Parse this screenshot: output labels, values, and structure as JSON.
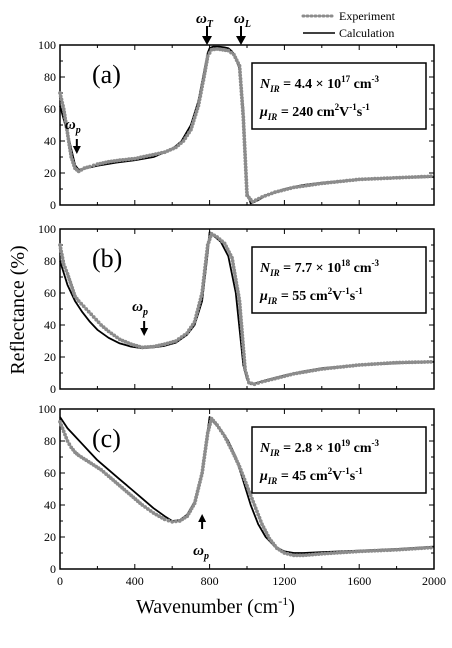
{
  "figure": {
    "ylabel": "Reflectance  (%)",
    "xlabel": "Wavenumber   (cm",
    "xlabel_sup": "-1",
    "xlabel_close": ")",
    "legend": {
      "experiment": "Experiment",
      "calculation": "Calculation"
    },
    "top_markers": {
      "omega_T": "ω",
      "omega_T_sub": "T",
      "omega_L": "ω",
      "omega_L_sub": "L"
    },
    "colors": {
      "experiment": "#8c8c8c",
      "calculation": "#000000"
    }
  },
  "chart_data": [
    {
      "type": "line",
      "panel": "(a)",
      "x_range": [
        0,
        2000
      ],
      "ylim": [
        0,
        100
      ],
      "xticks": [
        0,
        400,
        800,
        1200,
        1600,
        2000
      ],
      "yticks": [
        0,
        20,
        40,
        60,
        80,
        100
      ],
      "n_ir": {
        "base": "4.4",
        "mult": "×",
        "ten": "10",
        "exp": "17",
        "unit": "cm",
        "unit_exp": "-3",
        "label": "N",
        "sub": "IR"
      },
      "mu_ir": {
        "value": "240",
        "unit": "cm",
        "unit_exp1": "2",
        "V": "V",
        "unit_exp2": "-1",
        "s": "s",
        "unit_exp3": "-1",
        "label": "μ",
        "sub": "IR"
      },
      "omega_p": {
        "label": "ω",
        "sub": "p",
        "x": 90
      },
      "series": [
        {
          "name": "Calculation",
          "x": [
            0,
            40,
            80,
            100,
            140,
            200,
            300,
            400,
            500,
            600,
            650,
            700,
            740,
            770,
            790,
            800,
            820,
            850,
            880,
            900,
            920,
            940,
            960,
            980,
            1000,
            1020,
            1060,
            1100,
            1200,
            1300,
            1400,
            1600,
            1800,
            2000
          ],
          "y": [
            62,
            45,
            25,
            22,
            23,
            24.5,
            26.5,
            28,
            30,
            35,
            40,
            50,
            65,
            83,
            95,
            98,
            99,
            99,
            98.5,
            98,
            96,
            92,
            85,
            60,
            8,
            1,
            3,
            6,
            10,
            12.5,
            14,
            16,
            17,
            17.5
          ]
        },
        {
          "name": "Experiment",
          "x": [
            0,
            20,
            40,
            60,
            80,
            100,
            130,
            160,
            200,
            260,
            320,
            400,
            480,
            560,
            620,
            660,
            700,
            740,
            770,
            790,
            810,
            840,
            870,
            900,
            930,
            960,
            980,
            1000,
            1030,
            1080,
            1150,
            1250,
            1400,
            1600,
            1800,
            2000
          ],
          "y": [
            70,
            60,
            45,
            30,
            23,
            21,
            23,
            24,
            25.5,
            27,
            28,
            29,
            31,
            33,
            36,
            40,
            47,
            62,
            80,
            93,
            97,
            97.5,
            97,
            96.5,
            94,
            87,
            55,
            6,
            2,
            5,
            8,
            11,
            13.5,
            16,
            17,
            18
          ]
        }
      ]
    },
    {
      "type": "line",
      "panel": "(b)",
      "x_range": [
        0,
        2000
      ],
      "ylim": [
        0,
        100
      ],
      "xticks": [
        0,
        400,
        800,
        1200,
        1600,
        2000
      ],
      "yticks": [
        0,
        20,
        40,
        60,
        80,
        100
      ],
      "n_ir": {
        "base": "7.7",
        "mult": "×",
        "ten": "10",
        "exp": "18",
        "unit": "cm",
        "unit_exp": "-3",
        "label": "N",
        "sub": "IR"
      },
      "mu_ir": {
        "value": "55",
        "unit": "cm",
        "unit_exp1": "2",
        "V": "V",
        "unit_exp2": "-1",
        "s": "s",
        "unit_exp3": "-1",
        "label": "μ",
        "sub": "IR"
      },
      "omega_p": {
        "label": "ω",
        "sub": "p",
        "x": 450
      },
      "series": [
        {
          "name": "Calculation",
          "x": [
            0,
            40,
            80,
            120,
            160,
            200,
            260,
            320,
            380,
            440,
            500,
            560,
            620,
            680,
            720,
            760,
            790,
            800,
            820,
            860,
            900,
            940,
            980,
            1000,
            1020,
            1060,
            1100,
            1200,
            1300,
            1400,
            1600,
            1800,
            2000
          ],
          "y": [
            80,
            65,
            55,
            48,
            42,
            37,
            32,
            28.5,
            26.5,
            25.5,
            26,
            27,
            29,
            34,
            40,
            55,
            85,
            98,
            96,
            92,
            83,
            60,
            15,
            6,
            3,
            4,
            5.5,
            8.5,
            11,
            13,
            15,
            16,
            17
          ]
        },
        {
          "name": "Experiment",
          "x": [
            0,
            20,
            40,
            60,
            80,
            100,
            140,
            180,
            220,
            260,
            320,
            380,
            440,
            500,
            560,
            620,
            680,
            720,
            760,
            790,
            810,
            840,
            880,
            920,
            960,
            990,
            1010,
            1040,
            1080,
            1150,
            1250,
            1400,
            1600,
            1800,
            2000
          ],
          "y": [
            90,
            78,
            72,
            65,
            58,
            55,
            50,
            45,
            40,
            36,
            31,
            28,
            26,
            26.5,
            28,
            30,
            35,
            42,
            60,
            90,
            97,
            95,
            91,
            82,
            55,
            12,
            4,
            3,
            4.5,
            6.5,
            9.5,
            12.5,
            15,
            16.5,
            17
          ]
        }
      ]
    },
    {
      "type": "line",
      "panel": "(c)",
      "x_range": [
        0,
        2000
      ],
      "ylim": [
        0,
        100
      ],
      "xticks": [
        0,
        400,
        800,
        1200,
        1600,
        2000
      ],
      "yticks": [
        0,
        20,
        40,
        60,
        80,
        100
      ],
      "n_ir": {
        "base": "2.8",
        "mult": "×",
        "ten": "10",
        "exp": "19",
        "unit": "cm",
        "unit_exp": "-3",
        "label": "N",
        "sub": "IR"
      },
      "mu_ir": {
        "value": "45",
        "unit": "cm",
        "unit_exp1": "2",
        "V": "V",
        "unit_exp2": "-1",
        "s": "s",
        "unit_exp3": "-1",
        "label": "μ",
        "sub": "IR"
      },
      "omega_p": {
        "label": "ω",
        "sub": "p",
        "x": 760
      },
      "series": [
        {
          "name": "Calculation",
          "x": [
            0,
            40,
            80,
            120,
            160,
            200,
            260,
            320,
            380,
            440,
            500,
            560,
            600,
            640,
            680,
            720,
            760,
            780,
            800,
            820,
            860,
            900,
            940,
            980,
            1020,
            1060,
            1100,
            1150,
            1200,
            1250,
            1300,
            1400,
            1600,
            1800,
            2000
          ],
          "y": [
            95,
            88,
            83,
            78,
            73,
            68,
            62,
            56,
            50,
            44,
            38,
            33,
            30,
            30.5,
            34,
            42,
            60,
            78,
            95,
            92,
            87,
            80,
            70,
            55,
            40,
            28,
            20,
            14,
            11,
            10,
            10,
            10.5,
            11.5,
            12.5,
            14
          ]
        },
        {
          "name": "Experiment",
          "x": [
            0,
            20,
            40,
            60,
            80,
            100,
            140,
            180,
            220,
            260,
            320,
            380,
            440,
            500,
            560,
            600,
            640,
            680,
            720,
            760,
            790,
            810,
            840,
            880,
            920,
            960,
            1000,
            1040,
            1080,
            1120,
            1160,
            1200,
            1250,
            1300,
            1400,
            1600,
            1800,
            2000
          ],
          "y": [
            92,
            86,
            80,
            76,
            73,
            71,
            68,
            65,
            62,
            58,
            52,
            46,
            40,
            35,
            31,
            29.5,
            30,
            33,
            41,
            60,
            85,
            94,
            90,
            83,
            74,
            64,
            52,
            40,
            28,
            19,
            13,
            10,
            8.5,
            8.5,
            9.5,
            11,
            12,
            13.5
          ]
        }
      ]
    }
  ]
}
